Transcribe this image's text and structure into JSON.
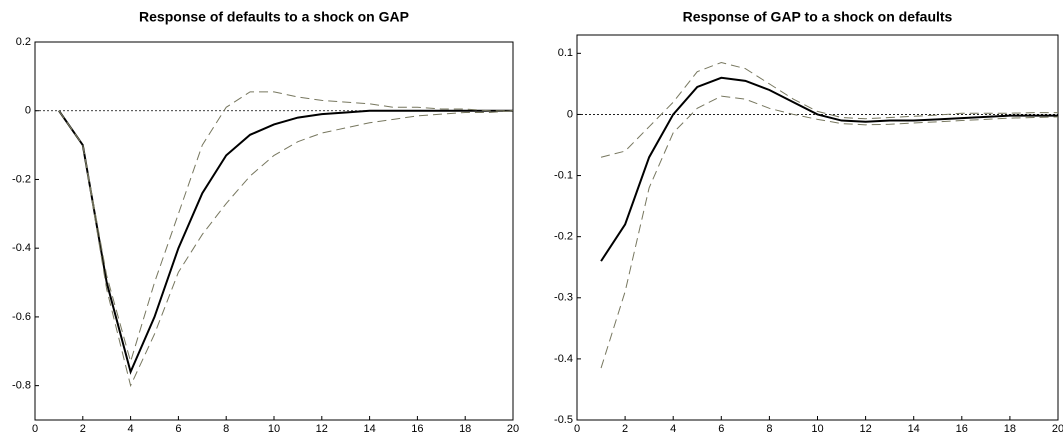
{
  "chart_data": [
    {
      "type": "line",
      "title": "Response of defaults to a shock on GAP",
      "x": [
        1,
        2,
        3,
        4,
        5,
        6,
        7,
        8,
        9,
        10,
        11,
        12,
        13,
        14,
        15,
        16,
        17,
        18,
        19,
        20
      ],
      "xlim": [
        0,
        20
      ],
      "xticks": [
        0,
        2,
        4,
        6,
        8,
        10,
        12,
        14,
        16,
        18,
        20
      ],
      "ylim": [
        -0.9,
        0.2
      ],
      "yticks": [
        0.2,
        0,
        -0.2,
        -0.4,
        -0.6,
        -0.8
      ],
      "reference_line": 0,
      "series": [
        {
          "color": "#000000",
          "style": "solid",
          "values": [
            0,
            -0.1,
            -0.5,
            -0.76,
            -0.6,
            -0.4,
            -0.24,
            -0.13,
            -0.07,
            -0.04,
            -0.02,
            -0.01,
            -0.005,
            0,
            0,
            0,
            0,
            0,
            0,
            0
          ]
        },
        {
          "color": "#77775f",
          "style": "dashed",
          "values": [
            0,
            -0.1,
            -0.48,
            -0.73,
            -0.5,
            -0.3,
            -0.1,
            0.01,
            0.055,
            0.055,
            0.04,
            0.03,
            0.025,
            0.02,
            0.01,
            0.01,
            0.005,
            0.005,
            0,
            0
          ]
        },
        {
          "color": "#77775f",
          "style": "dashed",
          "values": [
            0,
            -0.1,
            -0.52,
            -0.8,
            -0.65,
            -0.47,
            -0.36,
            -0.27,
            -0.19,
            -0.13,
            -0.09,
            -0.065,
            -0.05,
            -0.035,
            -0.025,
            -0.015,
            -0.01,
            -0.005,
            -0.005,
            0
          ]
        }
      ]
    },
    {
      "type": "line",
      "title": "Response of GAP to a shock on defaults",
      "x": [
        1,
        2,
        3,
        4,
        5,
        6,
        7,
        8,
        9,
        10,
        11,
        12,
        13,
        14,
        15,
        16,
        17,
        18,
        19,
        20
      ],
      "xlim": [
        0,
        20
      ],
      "xticks": [
        0,
        2,
        4,
        6,
        8,
        10,
        12,
        14,
        16,
        18,
        20
      ],
      "ylim": [
        -0.5,
        0.13
      ],
      "yticks": [
        0.1,
        0,
        -0.1,
        -0.2,
        -0.3,
        -0.4,
        -0.5
      ],
      "reference_line": 0,
      "series": [
        {
          "color": "#000000",
          "style": "solid",
          "values": [
            -0.24,
            -0.18,
            -0.07,
            0,
            0.045,
            0.06,
            0.055,
            0.04,
            0.02,
            0,
            -0.01,
            -0.012,
            -0.01,
            -0.01,
            -0.008,
            -0.006,
            -0.004,
            -0.002,
            -0.002,
            -0.002
          ]
        },
        {
          "color": "#77775f",
          "style": "dashed",
          "values": [
            -0.07,
            -0.06,
            -0.02,
            0.02,
            0.07,
            0.085,
            0.075,
            0.05,
            0.025,
            0.005,
            -0.005,
            -0.007,
            -0.005,
            -0.003,
            -0.001,
            0.002,
            0.002,
            0.002,
            0.003,
            0.003
          ]
        },
        {
          "color": "#77775f",
          "style": "dashed",
          "values": [
            -0.415,
            -0.29,
            -0.12,
            -0.03,
            0.01,
            0.03,
            0.025,
            0.01,
            0,
            -0.008,
            -0.015,
            -0.017,
            -0.016,
            -0.014,
            -0.012,
            -0.01,
            -0.008,
            -0.006,
            -0.005,
            -0.004
          ]
        }
      ]
    }
  ]
}
